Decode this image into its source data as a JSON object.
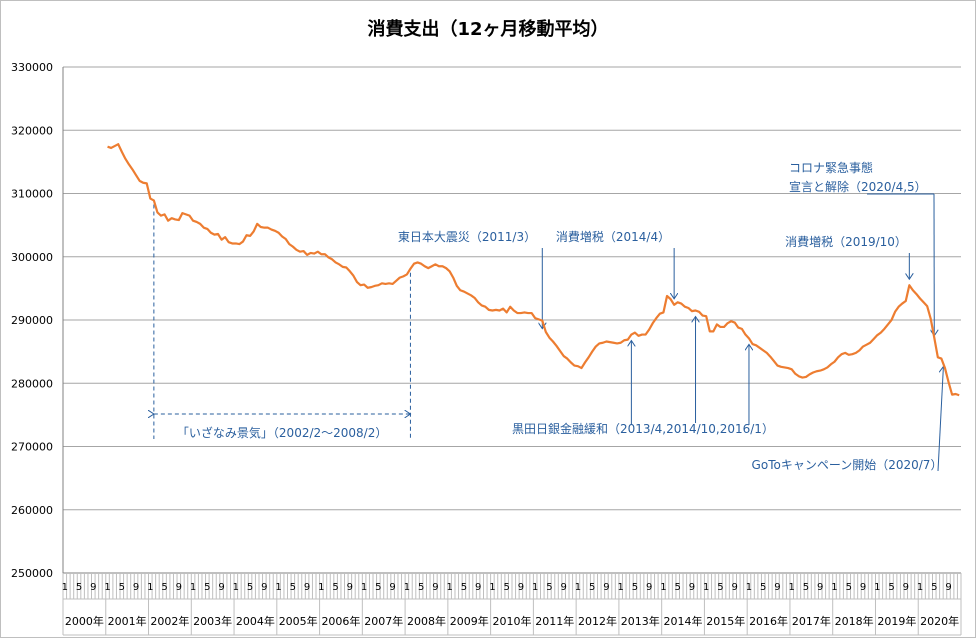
{
  "chart_data": {
    "type": "line",
    "title": "消費支出（12ヶ月移動平均）",
    "ylim": [
      250000,
      330000
    ],
    "y_ticks": [
      "330000",
      "320000",
      "310000",
      "300000",
      "290000",
      "280000",
      "270000",
      "260000",
      "250000"
    ],
    "grid": true,
    "line_color": "#ED7D31",
    "annotation_color": "#2a5f9e",
    "x_start": "2000-01",
    "x_end": "2020-12",
    "month_tick_labels": [
      "1",
      "5",
      "9"
    ],
    "years": [
      "2000年",
      "2001年",
      "2002年",
      "2003年",
      "2004年",
      "2005年",
      "2006年",
      "2007年",
      "2008年",
      "2009年",
      "2010年",
      "2011年",
      "2012年",
      "2013年",
      "2014年",
      "2015年",
      "2016年",
      "2017年",
      "2018年",
      "2019年",
      "2020年"
    ],
    "series": [
      {
        "points": [
          [
            "2001-01",
            317400
          ],
          [
            "2001-02",
            317200
          ],
          [
            "2001-03",
            317500
          ],
          [
            "2001-04",
            317800
          ],
          [
            "2001-05",
            316600
          ],
          [
            "2001-06",
            315500
          ],
          [
            "2001-07",
            314600
          ],
          [
            "2001-08",
            313800
          ],
          [
            "2001-09",
            312900
          ],
          [
            "2001-10",
            312000
          ],
          [
            "2001-11",
            311700
          ],
          [
            "2001-12",
            311600
          ],
          [
            "2002-01",
            309200
          ],
          [
            "2002-02",
            308900
          ],
          [
            "2002-03",
            307000
          ],
          [
            "2002-04",
            306500
          ],
          [
            "2002-05",
            306700
          ],
          [
            "2002-06",
            305700
          ],
          [
            "2002-07",
            306100
          ],
          [
            "2002-08",
            305900
          ],
          [
            "2002-09",
            305800
          ],
          [
            "2002-10",
            306900
          ],
          [
            "2002-11",
            306700
          ],
          [
            "2002-12",
            306500
          ],
          [
            "2003-01",
            305700
          ],
          [
            "2003-02",
            305500
          ],
          [
            "2003-03",
            305200
          ],
          [
            "2003-04",
            304600
          ],
          [
            "2003-05",
            304400
          ],
          [
            "2003-06",
            303800
          ],
          [
            "2003-07",
            303500
          ],
          [
            "2003-08",
            303600
          ],
          [
            "2003-09",
            302700
          ],
          [
            "2003-10",
            303100
          ],
          [
            "2003-11",
            302300
          ],
          [
            "2003-12",
            302100
          ],
          [
            "2004-01",
            302100
          ],
          [
            "2004-02",
            302000
          ],
          [
            "2004-03",
            302400
          ],
          [
            "2004-04",
            303400
          ],
          [
            "2004-05",
            303300
          ],
          [
            "2004-06",
            304000
          ],
          [
            "2004-07",
            305200
          ],
          [
            "2004-08",
            304700
          ],
          [
            "2004-09",
            304600
          ],
          [
            "2004-10",
            304600
          ],
          [
            "2004-11",
            304300
          ],
          [
            "2004-12",
            304100
          ],
          [
            "2005-01",
            303800
          ],
          [
            "2005-02",
            303200
          ],
          [
            "2005-03",
            302800
          ],
          [
            "2005-04",
            302000
          ],
          [
            "2005-05",
            301600
          ],
          [
            "2005-06",
            301100
          ],
          [
            "2005-07",
            300800
          ],
          [
            "2005-08",
            300900
          ],
          [
            "2005-09",
            300300
          ],
          [
            "2005-10",
            300600
          ],
          [
            "2005-11",
            300500
          ],
          [
            "2005-12",
            300800
          ],
          [
            "2006-01",
            300400
          ],
          [
            "2006-02",
            300400
          ],
          [
            "2006-03",
            299900
          ],
          [
            "2006-04",
            299600
          ],
          [
            "2006-05",
            299100
          ],
          [
            "2006-06",
            298800
          ],
          [
            "2006-07",
            298400
          ],
          [
            "2006-08",
            298300
          ],
          [
            "2006-09",
            297700
          ],
          [
            "2006-10",
            297000
          ],
          [
            "2006-11",
            296000
          ],
          [
            "2006-12",
            295500
          ],
          [
            "2007-01",
            295600
          ],
          [
            "2007-02",
            295100
          ],
          [
            "2007-03",
            295200
          ],
          [
            "2007-04",
            295400
          ],
          [
            "2007-05",
            295500
          ],
          [
            "2007-06",
            295800
          ],
          [
            "2007-07",
            295700
          ],
          [
            "2007-08",
            295800
          ],
          [
            "2007-09",
            295700
          ],
          [
            "2007-10",
            296200
          ],
          [
            "2007-11",
            296700
          ],
          [
            "2007-12",
            296900
          ],
          [
            "2008-01",
            297200
          ],
          [
            "2008-02",
            298100
          ],
          [
            "2008-03",
            298900
          ],
          [
            "2008-04",
            299100
          ],
          [
            "2008-05",
            298900
          ],
          [
            "2008-06",
            298500
          ],
          [
            "2008-07",
            298200
          ],
          [
            "2008-08",
            298500
          ],
          [
            "2008-09",
            298800
          ],
          [
            "2008-10",
            298500
          ],
          [
            "2008-11",
            298500
          ],
          [
            "2008-12",
            298200
          ],
          [
            "2009-01",
            297700
          ],
          [
            "2009-02",
            296700
          ],
          [
            "2009-03",
            295400
          ],
          [
            "2009-04",
            294700
          ],
          [
            "2009-05",
            294500
          ],
          [
            "2009-06",
            294200
          ],
          [
            "2009-07",
            293900
          ],
          [
            "2009-08",
            293500
          ],
          [
            "2009-09",
            292800
          ],
          [
            "2009-10",
            292300
          ],
          [
            "2009-11",
            292100
          ],
          [
            "2009-12",
            291600
          ],
          [
            "2010-01",
            291500
          ],
          [
            "2010-02",
            291600
          ],
          [
            "2010-03",
            291500
          ],
          [
            "2010-04",
            291800
          ],
          [
            "2010-05",
            291200
          ],
          [
            "2010-06",
            292100
          ],
          [
            "2010-07",
            291500
          ],
          [
            "2010-08",
            291100
          ],
          [
            "2010-09",
            291100
          ],
          [
            "2010-10",
            291200
          ],
          [
            "2010-11",
            291100
          ],
          [
            "2010-12",
            291100
          ],
          [
            "2011-01",
            290300
          ],
          [
            "2011-02",
            290100
          ],
          [
            "2011-03",
            289900
          ],
          [
            "2011-04",
            288100
          ],
          [
            "2011-05",
            287200
          ],
          [
            "2011-06",
            286600
          ],
          [
            "2011-07",
            285900
          ],
          [
            "2011-08",
            285100
          ],
          [
            "2011-09",
            284300
          ],
          [
            "2011-10",
            283900
          ],
          [
            "2011-11",
            283300
          ],
          [
            "2011-12",
            282800
          ],
          [
            "2012-01",
            282700
          ],
          [
            "2012-02",
            282400
          ],
          [
            "2012-03",
            283300
          ],
          [
            "2012-04",
            284100
          ],
          [
            "2012-05",
            285000
          ],
          [
            "2012-06",
            285800
          ],
          [
            "2012-07",
            286300
          ],
          [
            "2012-08",
            286400
          ],
          [
            "2012-09",
            286600
          ],
          [
            "2012-10",
            286500
          ],
          [
            "2012-11",
            286400
          ],
          [
            "2012-12",
            286300
          ],
          [
            "2013-01",
            286400
          ],
          [
            "2013-02",
            286800
          ],
          [
            "2013-03",
            286900
          ],
          [
            "2013-04",
            287700
          ],
          [
            "2013-05",
            288000
          ],
          [
            "2013-06",
            287500
          ],
          [
            "2013-07",
            287700
          ],
          [
            "2013-08",
            287700
          ],
          [
            "2013-09",
            288500
          ],
          [
            "2013-10",
            289500
          ],
          [
            "2013-11",
            290300
          ],
          [
            "2013-12",
            291000
          ],
          [
            "2014-01",
            291200
          ],
          [
            "2014-02",
            293800
          ],
          [
            "2014-03",
            293300
          ],
          [
            "2014-04",
            292400
          ],
          [
            "2014-05",
            292800
          ],
          [
            "2014-06",
            292600
          ],
          [
            "2014-07",
            292100
          ],
          [
            "2014-08",
            291900
          ],
          [
            "2014-09",
            291400
          ],
          [
            "2014-10",
            291500
          ],
          [
            "2014-11",
            291300
          ],
          [
            "2014-12",
            290700
          ],
          [
            "2015-01",
            290600
          ],
          [
            "2015-02",
            288200
          ],
          [
            "2015-03",
            288200
          ],
          [
            "2015-04",
            289300
          ],
          [
            "2015-05",
            288900
          ],
          [
            "2015-06",
            288900
          ],
          [
            "2015-07",
            289500
          ],
          [
            "2015-08",
            289800
          ],
          [
            "2015-09",
            289600
          ],
          [
            "2015-10",
            288800
          ],
          [
            "2015-11",
            288600
          ],
          [
            "2015-12",
            287700
          ],
          [
            "2016-01",
            287100
          ],
          [
            "2016-02",
            286200
          ],
          [
            "2016-03",
            286000
          ],
          [
            "2016-04",
            285600
          ],
          [
            "2016-05",
            285200
          ],
          [
            "2016-06",
            284800
          ],
          [
            "2016-07",
            284200
          ],
          [
            "2016-08",
            283500
          ],
          [
            "2016-09",
            282800
          ],
          [
            "2016-10",
            282600
          ],
          [
            "2016-11",
            282500
          ],
          [
            "2016-12",
            282400
          ],
          [
            "2017-01",
            282200
          ],
          [
            "2017-02",
            281500
          ],
          [
            "2017-03",
            281100
          ],
          [
            "2017-04",
            280900
          ],
          [
            "2017-05",
            281000
          ],
          [
            "2017-06",
            281400
          ],
          [
            "2017-07",
            281700
          ],
          [
            "2017-08",
            281900
          ],
          [
            "2017-09",
            282000
          ],
          [
            "2017-10",
            282200
          ],
          [
            "2017-11",
            282500
          ],
          [
            "2017-12",
            283000
          ],
          [
            "2018-01",
            283400
          ],
          [
            "2018-02",
            284100
          ],
          [
            "2018-03",
            284600
          ],
          [
            "2018-04",
            284800
          ],
          [
            "2018-05",
            284500
          ],
          [
            "2018-06",
            284600
          ],
          [
            "2018-07",
            284800
          ],
          [
            "2018-08",
            285200
          ],
          [
            "2018-09",
            285800
          ],
          [
            "2018-10",
            286100
          ],
          [
            "2018-11",
            286400
          ],
          [
            "2018-12",
            287000
          ],
          [
            "2019-01",
            287600
          ],
          [
            "2019-02",
            288000
          ],
          [
            "2019-03",
            288600
          ],
          [
            "2019-04",
            289300
          ],
          [
            "2019-05",
            290000
          ],
          [
            "2019-06",
            291300
          ],
          [
            "2019-07",
            292100
          ],
          [
            "2019-08",
            292600
          ],
          [
            "2019-09",
            293000
          ],
          [
            "2019-10",
            295500
          ],
          [
            "2019-11",
            294700
          ],
          [
            "2019-12",
            294100
          ],
          [
            "2020-01",
            293400
          ],
          [
            "2020-02",
            292800
          ],
          [
            "2020-03",
            292200
          ],
          [
            "2020-04",
            290200
          ],
          [
            "2020-05",
            287200
          ],
          [
            "2020-06",
            284100
          ],
          [
            "2020-07",
            283900
          ],
          [
            "2020-08",
            282400
          ],
          [
            "2020-09",
            280200
          ],
          [
            "2020-10",
            278200
          ],
          [
            "2020-11",
            278300
          ],
          [
            "2020-12",
            278100
          ]
        ]
      }
    ],
    "annotations": [
      {
        "text": "「いざなみ景気」（2002/2～2008/2）",
        "from": "2002-02",
        "to": "2008-02"
      },
      {
        "text": "東日本大震災（2011/3）",
        "at": [
          "2011-03"
        ]
      },
      {
        "text": "消費増税（2014/4）",
        "at": [
          "2014-04"
        ]
      },
      {
        "text": "黒田日銀金融緩和（2013/4,2014/10,2016/1）",
        "at": [
          "2013-04",
          "2014-10",
          "2016-01"
        ]
      },
      {
        "text": "消費増税（2019/10）",
        "at": [
          "2019-10"
        ]
      },
      {
        "text": "コロナ緊急事態",
        "text2": "宣言と解除（2020/4,5）",
        "at": [
          "2020-04",
          "2020-05"
        ]
      },
      {
        "text": "GoToキャンペーン開始（2020/7）",
        "at": [
          "2020-07"
        ]
      }
    ]
  }
}
